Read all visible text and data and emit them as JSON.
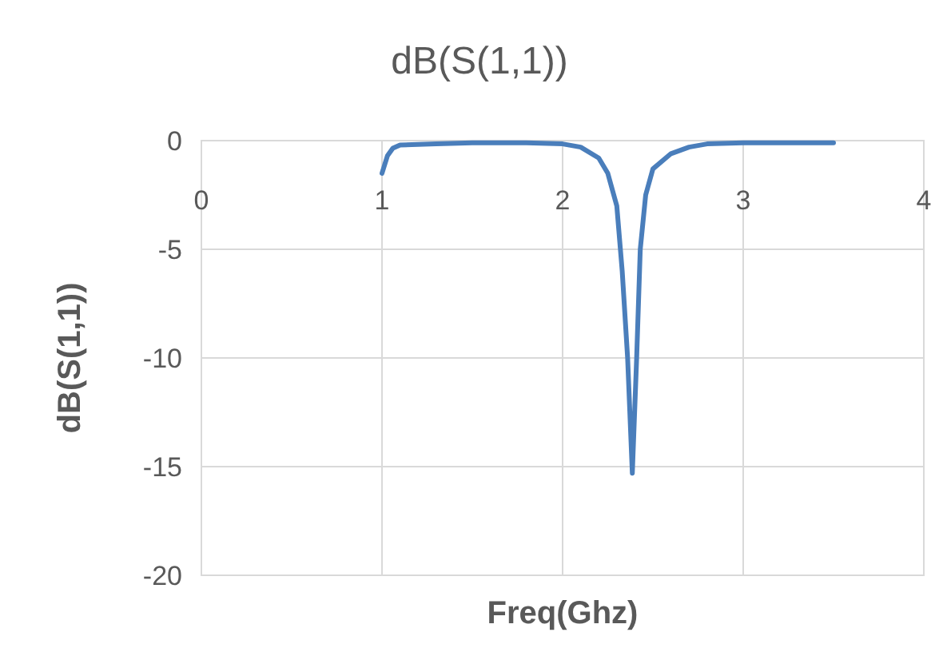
{
  "chart_data": {
    "type": "line",
    "title": "dB(S(1,1))",
    "xlabel": "Freq(Ghz)",
    "ylabel": "dB(S(1,1))",
    "xlim": [
      0,
      4
    ],
    "xticks": [
      0,
      1,
      2,
      3,
      4
    ],
    "ylim": [
      -20,
      0
    ],
    "yticks": [
      -20,
      -15,
      -10,
      -5,
      0
    ],
    "grid": true,
    "marker": "none",
    "line_style": "solid",
    "x": [
      1.0,
      1.03,
      1.06,
      1.1,
      1.3,
      1.5,
      1.8,
      2.0,
      2.1,
      2.2,
      2.25,
      2.3,
      2.33,
      2.36,
      2.386,
      2.41,
      2.43,
      2.46,
      2.5,
      2.6,
      2.7,
      2.8,
      3.0,
      3.5
    ],
    "series": [
      {
        "color": "#4a7ebb",
        "values": [
          -1.5,
          -0.7,
          -0.35,
          -0.2,
          -0.15,
          -0.1,
          -0.1,
          -0.15,
          -0.3,
          -0.8,
          -1.5,
          -3,
          -6,
          -10,
          -15.3,
          -10,
          -5,
          -2.5,
          -1.3,
          -0.6,
          -0.3,
          -0.15,
          -0.1,
          -0.1
        ]
      }
    ]
  }
}
